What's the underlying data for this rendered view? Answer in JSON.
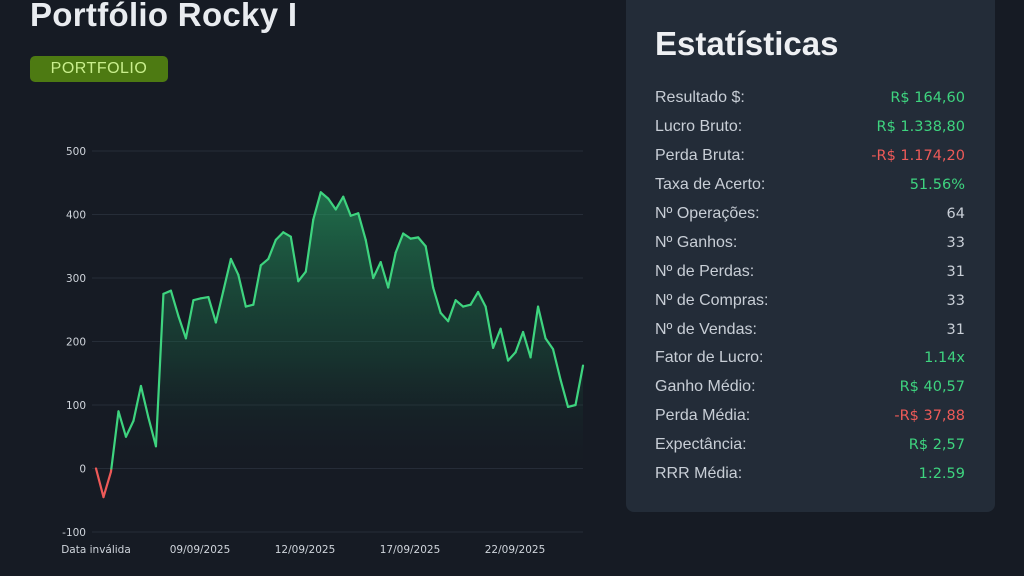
{
  "header": {
    "title": "Portfólio Rocky I",
    "badge": "PORTFOLIO"
  },
  "colors": {
    "positive": "#3ed47f",
    "negative": "#ee5a58",
    "badge_bg": "#4d7a12",
    "panel_bg": "#232c38"
  },
  "chart_data": {
    "type": "area",
    "title": "",
    "xlabel": "",
    "ylabel": "",
    "ylim": [
      -100,
      500
    ],
    "yticks": [
      500,
      400,
      300,
      200,
      100,
      0,
      -100
    ],
    "x_tick_labels": [
      "Data inválida",
      "09/09/2025",
      "12/09/2025",
      "17/09/2025",
      "22/09/2025"
    ],
    "grid": true,
    "legend": "none",
    "colors": {
      "above_zero": "#3ed47f",
      "below_zero": "#ee5a58"
    },
    "series": [
      {
        "values": [
          0,
          -45,
          -5,
          90,
          50,
          75,
          130,
          80,
          35,
          275,
          280,
          240,
          205,
          265,
          268,
          270,
          230,
          280,
          330,
          305,
          255,
          258,
          320,
          330,
          360,
          372,
          365,
          295,
          310,
          392,
          435,
          425,
          408,
          428,
          398,
          402,
          360,
          300,
          325,
          285,
          340,
          370,
          362,
          364,
          350,
          285,
          245,
          232,
          265,
          255,
          258,
          278,
          255,
          190,
          220,
          170,
          183,
          215,
          175,
          255,
          205,
          188,
          140,
          97,
          100,
          162
        ]
      }
    ]
  },
  "stats": {
    "title": "Estatísticas",
    "rows": [
      {
        "label": "Resultado $:",
        "value": "R$ 164,60",
        "tone": "green"
      },
      {
        "label": "Lucro Bruto:",
        "value": "R$ 1.338,80",
        "tone": "green"
      },
      {
        "label": "Perda Bruta:",
        "value": "-R$ 1.174,20",
        "tone": "red"
      },
      {
        "label": "Taxa de Acerto:",
        "value": "51.56%",
        "tone": "green"
      },
      {
        "label": "Nº Operações:",
        "value": "64",
        "tone": "neutral"
      },
      {
        "label": "Nº Ganhos:",
        "value": "33",
        "tone": "neutral"
      },
      {
        "label": "Nº de Perdas:",
        "value": "31",
        "tone": "neutral"
      },
      {
        "label": "Nº de Compras:",
        "value": "33",
        "tone": "neutral"
      },
      {
        "label": "Nº de Vendas:",
        "value": "31",
        "tone": "neutral"
      },
      {
        "label": "Fator de Lucro:",
        "value": "1.14x",
        "tone": "green"
      },
      {
        "label": "Ganho Médio:",
        "value": "R$ 40,57",
        "tone": "green"
      },
      {
        "label": "Perda Média:",
        "value": "-R$ 37,88",
        "tone": "red"
      },
      {
        "label": "Expectância:",
        "value": "R$ 2,57",
        "tone": "green"
      },
      {
        "label": "RRR Média:",
        "value": "1:2.59",
        "tone": "green"
      }
    ]
  }
}
